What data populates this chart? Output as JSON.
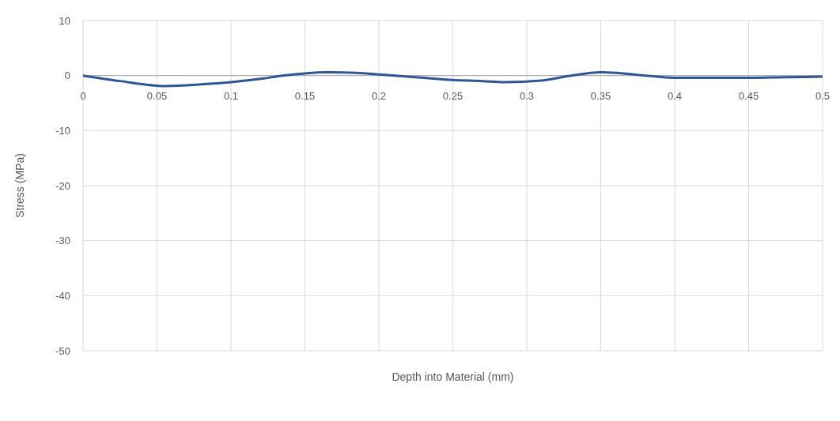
{
  "chart_data": {
    "type": "line",
    "xlabel": "Depth into Material (mm)",
    "ylabel": "Stress (MPa)",
    "x": [
      0,
      0.025,
      0.055,
      0.08,
      0.1,
      0.12,
      0.135,
      0.15,
      0.165,
      0.185,
      0.2,
      0.225,
      0.25,
      0.27,
      0.285,
      0.31,
      0.33,
      0.35,
      0.365,
      0.38,
      0.4,
      0.425,
      0.45,
      0.475,
      0.5
    ],
    "series": [
      {
        "color": "#2f5597",
        "values": [
          0,
          -1.0,
          -1.9,
          -1.6,
          -1.2,
          -0.6,
          0,
          0.4,
          0.6,
          0.5,
          0.2,
          -0.3,
          -0.8,
          -1.0,
          -1.2,
          -0.9,
          0,
          0.6,
          0.4,
          0,
          -0.4,
          -0.4,
          -0.4,
          -0.3,
          -0.2
        ]
      }
    ],
    "xlim": [
      0,
      0.5
    ],
    "xticks": [
      0,
      0.05,
      0.1,
      0.15,
      0.2,
      0.25,
      0.3,
      0.35,
      0.4,
      0.45,
      0.5
    ],
    "ylim": [
      -50,
      10
    ],
    "yticks": [
      -50,
      -40,
      -30,
      -20,
      -10,
      0,
      10
    ],
    "grid": true
  }
}
